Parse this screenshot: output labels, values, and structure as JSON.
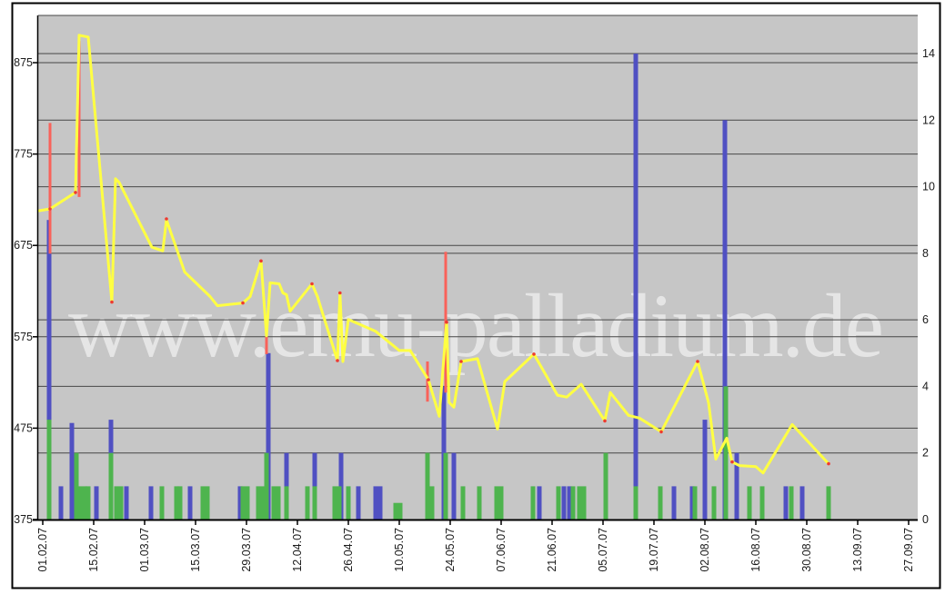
{
  "watermark": {
    "text": "www.emu-palladium.de",
    "color": "rgba(255,255,255,0.55)"
  },
  "colors": {
    "plot_bg": "#c6c6c6",
    "page_bg": "#ffffff",
    "grid": "#474747",
    "axis": "#000000",
    "label": "#1a1a1a",
    "price_line": "#ffff42",
    "spike": "#f9625a",
    "marker": "#ee3a30",
    "bar_blue": "#5050c2",
    "bar_green": "#4eb44e"
  },
  "chart_data": {
    "type": "composite",
    "title": "",
    "legend": "none",
    "grid": "on",
    "x_axis": {
      "unit": "days since first tick (01.02.07), 14-day tick spacing",
      "tick_labels": [
        "01.02.07",
        "15.02.07",
        "01.03.07",
        "15.03.07",
        "29.03.07",
        "12.04.07",
        "26.04.07",
        "10.05.07",
        "24.05.07",
        "07.06.07",
        "21.06.07",
        "05.07.07",
        "19.07.07",
        "02.08.07",
        "16.08.07",
        "30.08.07",
        "13.09.07",
        "27.09.07"
      ],
      "tick_days": [
        0,
        14,
        28,
        42,
        56,
        70,
        84,
        98,
        112,
        126,
        140,
        154,
        168,
        182,
        196,
        210,
        224,
        238
      ]
    },
    "left_axis": {
      "tick_labels": [
        "875",
        "775",
        "675",
        "575",
        "475",
        "375"
      ],
      "ticks": [
        875,
        775,
        675,
        575,
        475,
        375
      ],
      "range": [
        375,
        927
      ],
      "grid_values": [
        475,
        575,
        675,
        775,
        875
      ]
    },
    "right_axis": {
      "tick_labels": [
        "14",
        "12",
        "10",
        "8",
        "6",
        "4",
        "2",
        "0"
      ],
      "ticks": [
        14,
        12,
        10,
        8,
        6,
        4,
        2,
        0
      ],
      "range": [
        0,
        15.2
      ],
      "grid_values": [
        2,
        4,
        6,
        8,
        10,
        12,
        14
      ]
    },
    "series": [
      {
        "name": "price-line",
        "type": "line",
        "axis": "left",
        "points": [
          [
            -1,
            713
          ],
          [
            2,
            715
          ],
          [
            9,
            733
          ],
          [
            10,
            905
          ],
          [
            12.5,
            903
          ],
          [
            19,
            613
          ],
          [
            20,
            748
          ],
          [
            21,
            744
          ],
          [
            30,
            673
          ],
          [
            33,
            669
          ],
          [
            34,
            703
          ],
          [
            39,
            646
          ],
          [
            46,
            619
          ],
          [
            48,
            609
          ],
          [
            55,
            612
          ],
          [
            57,
            619
          ],
          [
            60,
            658
          ],
          [
            61.5,
            576
          ],
          [
            62.5,
            634
          ],
          [
            65,
            633
          ],
          [
            66,
            623
          ],
          [
            67,
            621
          ],
          [
            68,
            603
          ],
          [
            74,
            633
          ],
          [
            75.5,
            619
          ],
          [
            76.5,
            606
          ],
          [
            81,
            549
          ],
          [
            81.7,
            623
          ],
          [
            82.5,
            548
          ],
          [
            84,
            594
          ],
          [
            91.5,
            581
          ],
          [
            98,
            560
          ],
          [
            101,
            560
          ],
          [
            106,
            528
          ],
          [
            109,
            488
          ],
          [
            111,
            591
          ],
          [
            111.7,
            503
          ],
          [
            113,
            498
          ],
          [
            115,
            548
          ],
          [
            119.5,
            551
          ],
          [
            125,
            474
          ],
          [
            127,
            526
          ],
          [
            135,
            556
          ],
          [
            141.5,
            511
          ],
          [
            144,
            509
          ],
          [
            148,
            523
          ],
          [
            154.5,
            483
          ],
          [
            156,
            514
          ],
          [
            161,
            489
          ],
          [
            164,
            486
          ],
          [
            170,
            471
          ],
          [
            180,
            548
          ],
          [
            183,
            503
          ],
          [
            185,
            441
          ],
          [
            188,
            464
          ],
          [
            189.5,
            438
          ],
          [
            191.5,
            434
          ],
          [
            196,
            433
          ],
          [
            198,
            426
          ],
          [
            206,
            479
          ],
          [
            216,
            436
          ]
        ]
      },
      {
        "name": "high-low-spikes",
        "type": "spike",
        "axis": "left",
        "spikes": [
          [
            2,
            809,
            666
          ],
          [
            10,
            899,
            728
          ],
          [
            61.5,
            584,
            556
          ],
          [
            105.75,
            548,
            504
          ],
          [
            110.75,
            668,
            514
          ]
        ]
      },
      {
        "name": "point-markers",
        "type": "dot",
        "axis": "left",
        "points": [
          [
            2,
            715
          ],
          [
            9,
            733
          ],
          [
            19,
            613
          ],
          [
            34,
            704
          ],
          [
            55,
            612
          ],
          [
            60,
            658
          ],
          [
            74,
            633
          ],
          [
            81,
            549
          ],
          [
            81.7,
            623
          ],
          [
            106,
            528
          ],
          [
            111,
            591
          ],
          [
            115,
            548
          ],
          [
            135,
            556
          ],
          [
            154.5,
            483
          ],
          [
            170,
            471
          ],
          [
            180,
            548
          ],
          [
            189.5,
            438
          ],
          [
            216,
            436
          ]
        ]
      },
      {
        "name": "volume-blue",
        "type": "bar",
        "axis": "right",
        "bars": [
          [
            1.75,
            9
          ],
          [
            5,
            1
          ],
          [
            8,
            2.9
          ],
          [
            14.75,
            1
          ],
          [
            18.75,
            3
          ],
          [
            23,
            1
          ],
          [
            29.75,
            1
          ],
          [
            40.5,
            1
          ],
          [
            54.25,
            1
          ],
          [
            62,
            5
          ],
          [
            67,
            2
          ],
          [
            74.75,
            2
          ],
          [
            82,
            2
          ],
          [
            86.75,
            1
          ],
          [
            91.5,
            1
          ],
          [
            92.75,
            1
          ],
          [
            110.25,
            4
          ],
          [
            113,
            2
          ],
          [
            136.5,
            1
          ],
          [
            143.25,
            1
          ],
          [
            144.75,
            1
          ],
          [
            163,
            14
          ],
          [
            173.5,
            1
          ],
          [
            178.5,
            1
          ],
          [
            182,
            3
          ],
          [
            187.5,
            12
          ],
          [
            190.75,
            2
          ],
          [
            204.25,
            1
          ],
          [
            208.75,
            1
          ]
        ]
      },
      {
        "name": "volume-green",
        "type": "bar",
        "axis": "right",
        "bars": [
          [
            1.75,
            3
          ],
          [
            9.25,
            2
          ],
          [
            10.25,
            1
          ],
          [
            11.5,
            1
          ],
          [
            12.5,
            1
          ],
          [
            18.75,
            2
          ],
          [
            20.25,
            1
          ],
          [
            21.5,
            1
          ],
          [
            32.75,
            1
          ],
          [
            36.75,
            1
          ],
          [
            37.75,
            1
          ],
          [
            44,
            1
          ],
          [
            45.25,
            1
          ],
          [
            55,
            1
          ],
          [
            56.25,
            1
          ],
          [
            59.25,
            1
          ],
          [
            60.5,
            1
          ],
          [
            61.5,
            2
          ],
          [
            63.5,
            1
          ],
          [
            64.75,
            1
          ],
          [
            67,
            1
          ],
          [
            72.75,
            1
          ],
          [
            74.75,
            1
          ],
          [
            80.25,
            1
          ],
          [
            81.5,
            1
          ],
          [
            84,
            1
          ],
          [
            97,
            0.5
          ],
          [
            98.25,
            0.5
          ],
          [
            105.75,
            2
          ],
          [
            107,
            1
          ],
          [
            110.75,
            2
          ],
          [
            115.5,
            1
          ],
          [
            120,
            1
          ],
          [
            124.75,
            1
          ],
          [
            126,
            1
          ],
          [
            134.75,
            1
          ],
          [
            141.75,
            1
          ],
          [
            145.75,
            1
          ],
          [
            147.5,
            1
          ],
          [
            148.75,
            1
          ],
          [
            154.75,
            2
          ],
          [
            163,
            1
          ],
          [
            169.75,
            1
          ],
          [
            179.25,
            1
          ],
          [
            184.5,
            1
          ],
          [
            187.75,
            4
          ],
          [
            194.25,
            1
          ],
          [
            197.75,
            1
          ],
          [
            205.75,
            1
          ],
          [
            216,
            1
          ]
        ]
      }
    ]
  }
}
